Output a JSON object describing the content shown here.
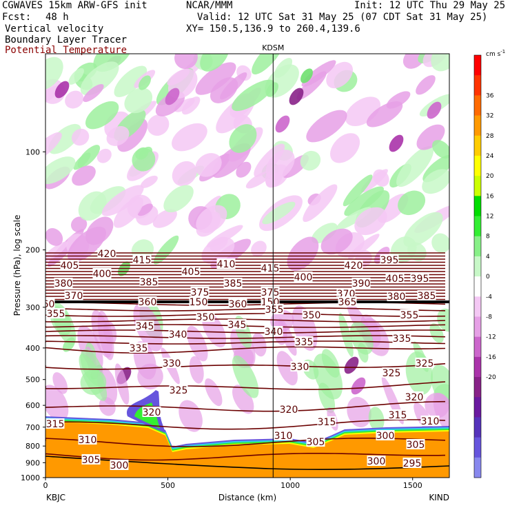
{
  "header": {
    "model": "CGWAVES 15km ARW-GFS init",
    "org": "NCAR/MMM",
    "init": "Init: 12 UTC Thu 29 May 25",
    "fcst_label": "Fcst:",
    "fcst_value": "48 h",
    "valid": "Valid: 12 UTC Sat 31 May 25 (07 CDT Sat 31 May 25)",
    "field1": "Vertical velocity",
    "field2": "Boundary Layer Tracer",
    "field3": "Potential Temperature",
    "xy": "XY= 150.5,136.9 to 260.4,139.6"
  },
  "chart_data": {
    "type": "heatmap",
    "ylabel": "Pressure (hPa), log scale",
    "xlabel": "Distance (km)",
    "xlim": [
      0,
      1650
    ],
    "ylim": [
      1000,
      50
    ],
    "log_y": true,
    "x_ticks": [
      "0",
      "500",
      "1000",
      "1500"
    ],
    "y_ticks": [
      "100",
      "200",
      "300",
      "400",
      "500",
      "600",
      "700",
      "800",
      "900",
      "1000"
    ],
    "endpoint_left": "KBJC",
    "endpoint_right": "KIND",
    "marker": {
      "label": "KDSM",
      "x_km": 930
    },
    "colorbar_unit": "cm s",
    "colorbar_unit_exp": "-1",
    "colorbar_labels": [
      "36",
      "32",
      "28",
      "24",
      "20",
      "16",
      "12",
      "8",
      "4",
      "0",
      "-4",
      "-8",
      "-12",
      "-16",
      "-20"
    ],
    "colorbar_colors": [
      "#ff0000",
      "#ff3300",
      "#ff6a00",
      "#ff9900",
      "#ffcc00",
      "#ffff00",
      "#ccff00",
      "#00dd00",
      "#33ee33",
      "#88f088",
      "#c8f8c8",
      "#ffffff",
      "#f4c8f4",
      "#e6a0e6",
      "#cc66cc",
      "#aa33aa",
      "#882288",
      "#6a1aa0",
      "#5533bb",
      "#6655dd",
      "#8888ee"
    ],
    "theta_contour_labels": [
      "420",
      "405",
      "415",
      "410",
      "405",
      "415",
      "420",
      "395",
      "400",
      "395",
      "400",
      "405",
      "380",
      "385",
      "385",
      "390",
      "370",
      "375",
      "375",
      "370",
      "380",
      "385",
      "360",
      "360",
      "150",
      "360",
      "150",
      "365",
      "355",
      "355",
      "350",
      "350",
      "355",
      "345",
      "345",
      "340",
      "340",
      "335",
      "335",
      "335",
      "330",
      "330",
      "325",
      "325",
      "325",
      "320",
      "320",
      "315",
      "315",
      "310",
      "320",
      "310",
      "305",
      "315",
      "310",
      "305",
      "300",
      "300",
      "305",
      "300",
      "295"
    ]
  }
}
